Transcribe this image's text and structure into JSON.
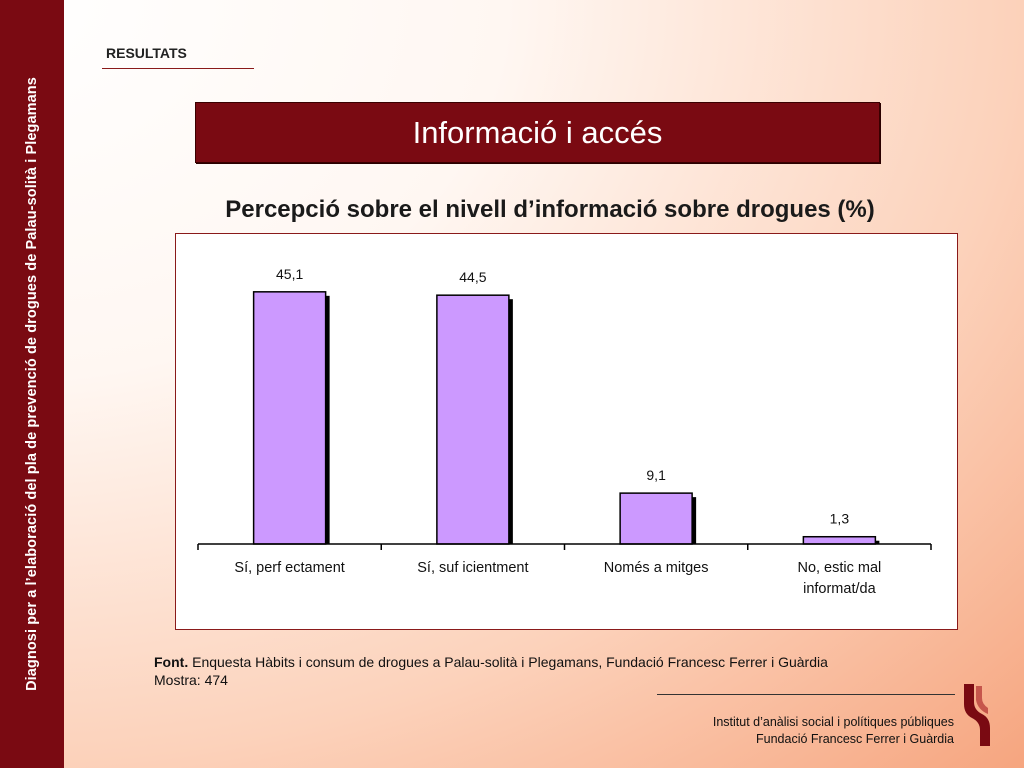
{
  "sidebar": {
    "text": "Diagnosi per a l’elaboració del pla de prevenció de drogues de Palau-solità i Plegamans"
  },
  "section_label": "RESULTATS",
  "banner_title": "Informació i accés",
  "chart_data": {
    "type": "bar",
    "title": "Percepció sobre el nivell d’informació sobre drogues (%)",
    "categories": [
      "Sí, perfectament",
      "Sí, suficientment",
      "Només a mitges",
      "No, estic mal informat/da"
    ],
    "category_lines": [
      [
        "Sí, perf ectament"
      ],
      [
        "Sí, suf icientment"
      ],
      [
        "Només a mitges"
      ],
      [
        "No, estic mal",
        "informat/da"
      ]
    ],
    "values": [
      45.1,
      44.5,
      9.1,
      1.3
    ],
    "value_labels": [
      "45,1",
      "44,5",
      "9,1",
      "1,3"
    ],
    "ylim": [
      0,
      50
    ],
    "bar_color": "#cc99ff",
    "grid": false
  },
  "source": {
    "prefix": "Font.",
    "text": " Enquesta Hàbits i consum de drogues a Palau-solità i Plegamans, Fundació Francesc Ferrer i Guàrdia",
    "sample": "Mostra: 474"
  },
  "footer": {
    "line1": "Institut d’anàlisi social i polítiques públiques",
    "line2": "Fundació Francesc Ferrer i Guàrdia"
  },
  "colors": {
    "brand": "#7a0a12",
    "accent": "#8a1a1a"
  }
}
